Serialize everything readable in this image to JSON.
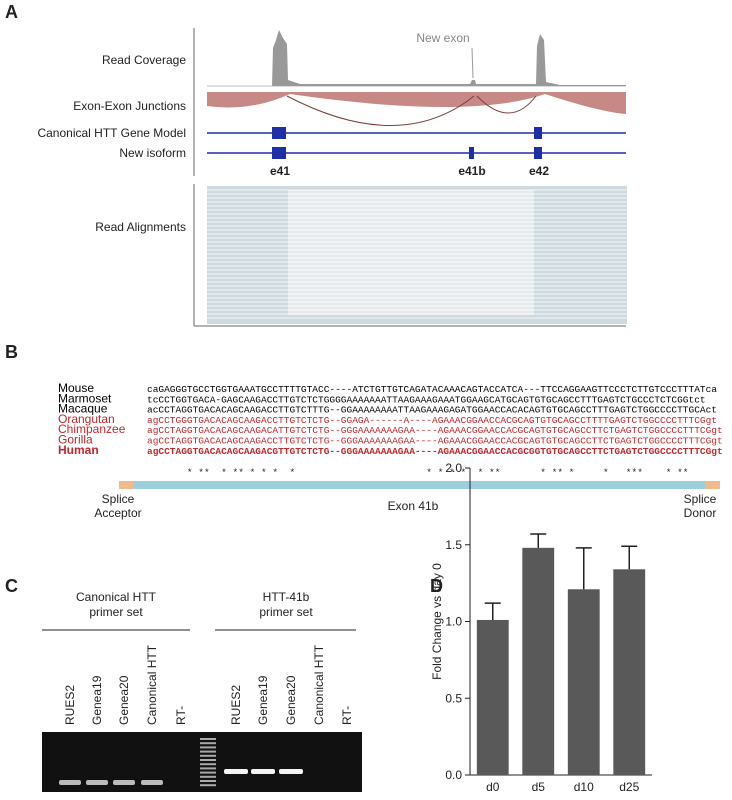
{
  "panel_a": {
    "label": "A",
    "tracks": [
      "Read Coverage",
      "Exon-Exon Junctions",
      "Canonical HTT Gene Model",
      "New isoform",
      "Read Alignments"
    ],
    "annotation": "New exon",
    "exons": [
      "e41",
      "e41b",
      "e42"
    ]
  },
  "panel_b": {
    "label": "B",
    "species": [
      {
        "name": "Mouse",
        "color": "#000000",
        "sequence": "caGAGGGTGCCTGGTGAAATGCCTTTTGTACC----ATCTGTTGTCAGATACAAACAGTACCATCA---TTCCAGGAAGTTCCCTCTTGTCCCTTTATca"
      },
      {
        "name": "Marmoset",
        "color": "#000000",
        "sequence": "tcCCTGGTGACA-GAGCAAGACCTTGTCTCTGGGGAAAAAAATTAAGAAAGAAATGGAAGCATGCAGTGTGCAGCCTTTGAGTCTGCCCTCTCGGtct"
      },
      {
        "name": "Macaque",
        "color": "#000000",
        "sequence": "acCCTAGGTGACACAGCAAGACCTTGTCTTTG--GGAAAAAAAATTAAGAAAGAGATGGAACCACACAGTGTGCAGCCTTTGAGTCTGGCCCCTTGCAct"
      },
      {
        "name": "Orangutan",
        "color": "#c0282d",
        "sequence": "agCCTGGGTGACACAGCAAGACCTTGTCTCTG--GGAGA------A----AGAAACGGAACCACGCAGTGTGCAGCCTTTTGAGTCTGGCCCCTTTCGgt"
      },
      {
        "name": "Chimpanzee",
        "color": "#c0282d",
        "sequence": "agCCTAGGTGACACAGCAAGACATTGTCTCTG--GGGAAAAAAAGAA----AGAAACGGAACCACGCAGTGTGCAGCCTTCTGAGTCTGGCCCCTTTCGgt"
      },
      {
        "name": "Gorilla",
        "color": "#c0282d",
        "sequence": "agCCTAGGTGACACAGCAAGACCTTGTCTCTG--GGGAAAAAAAGAA----AGAAACGGAACCACGCAGTGTGCAGCCTTCTGAGTCTGGCCCCTTTCGgt"
      },
      {
        "name": "Human",
        "color": "#c0282d",
        "bold": true,
        "sequence": "agCCTAGGTGACACAGCAAGACGTTGTCTCTG--GGGAAAAAAAGAA----AGAAACGGAACCACGCGGTGTGCAGCCTTCTGAGTCTGGCCCCTTTCGgt"
      }
    ],
    "conservation": "       * **  * ** * * *  *                       * * * *  * **       * ** *     *   ***    * **",
    "splice_acceptor": [
      "Splice",
      "Acceptor"
    ],
    "exon": "Exon 41b",
    "splice_donor": [
      "Splice",
      "Donor"
    ]
  },
  "panel_c": {
    "label": "C",
    "primer_sets": [
      {
        "name": [
          "Canonical HTT",
          "primer set"
        ],
        "lanes": [
          "RUES2",
          "Genea19",
          "Genea20",
          "Canonical HTT",
          "RT-"
        ]
      },
      {
        "name": [
          "HTT-41b",
          "primer set"
        ],
        "lanes": [
          "RUES2",
          "Genea19",
          "Genea20",
          "Canonical HTT",
          "RT-"
        ]
      }
    ]
  },
  "panel_d": {
    "label": "D"
  },
  "chart_data": {
    "type": "bar",
    "y_label": "Fold Change vs day 0",
    "categories": [
      "d0",
      "d5",
      "d10",
      "d25"
    ],
    "values": [
      1.01,
      1.48,
      1.21,
      1.34
    ],
    "errors": [
      0.11,
      0.09,
      0.27,
      0.15
    ],
    "color": "#595959",
    "ylim": [
      0,
      2
    ],
    "yticks": [
      {
        "value": 0,
        "label": "0.0"
      },
      {
        "value": 0.5,
        "label": "0.5"
      },
      {
        "value": 1,
        "label": "1.0"
      },
      {
        "value": 1.5,
        "label": "1.5"
      },
      {
        "value": 2,
        "label": "2.0"
      }
    ]
  }
}
